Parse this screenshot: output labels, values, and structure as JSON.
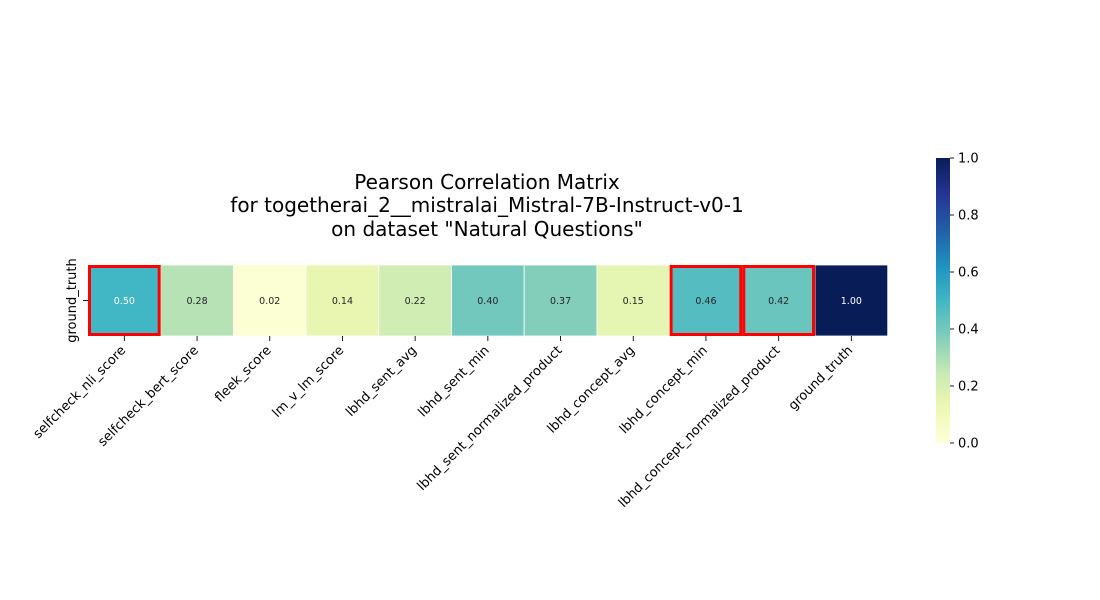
{
  "chart_data": {
    "type": "heatmap",
    "title_lines": [
      "Pearson Correlation Matrix",
      "for togetherai_2__mistralai_Mistral-7B-Instruct-v0-1",
      "on dataset \"Natural Questions\""
    ],
    "rows": [
      "ground_truth"
    ],
    "columns": [
      "selfcheck_nli_score",
      "selfcheck_bert_score",
      "fleek_score",
      "lm_v_lm_score",
      "lbhd_sent_avg",
      "lbhd_sent_min",
      "lbhd_sent_normalized_product",
      "lbhd_concept_avg",
      "lbhd_concept_min",
      "lbhd_concept_normalized_product",
      "ground_truth"
    ],
    "values": [
      [
        0.5,
        0.28,
        0.02,
        0.14,
        0.22,
        0.4,
        0.37,
        0.15,
        0.46,
        0.42,
        1.0
      ]
    ],
    "value_labels": [
      "0.50",
      "0.28",
      "0.02",
      "0.14",
      "0.22",
      "0.40",
      "0.37",
      "0.15",
      "0.46",
      "0.42",
      "1.00"
    ],
    "highlighted_columns": [
      "selfcheck_nli_score",
      "lbhd_concept_min",
      "lbhd_concept_normalized_product"
    ],
    "highlight_color": "#ff0000",
    "colormap": "YlGnBu",
    "vmin": 0.0,
    "vmax": 1.0,
    "colorbar_ticks": [
      "0.0",
      "0.2",
      "0.4",
      "0.6",
      "0.8",
      "1.0"
    ]
  }
}
